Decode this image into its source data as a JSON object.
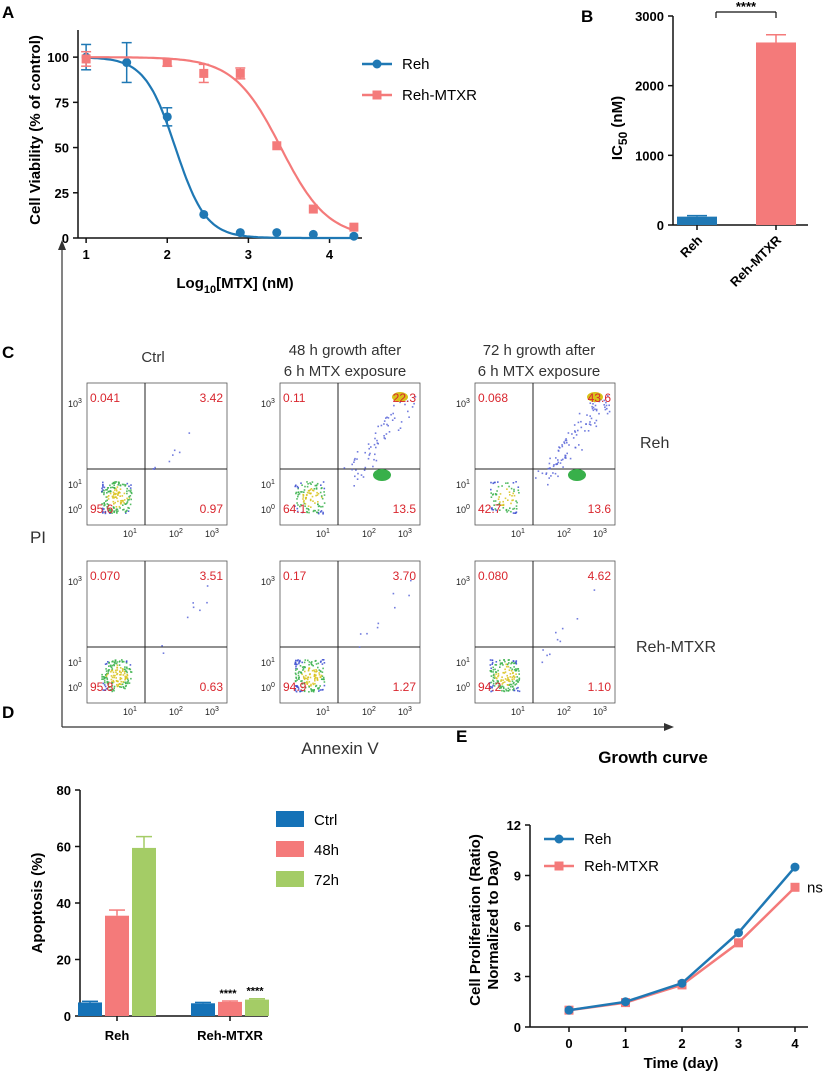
{
  "colors": {
    "reh": "#1f78b4",
    "reh_mtxr": "#f47a7a",
    "ctrl": "#1572b7",
    "h48": "#f47a7a",
    "h72": "#a4cc66",
    "quad_text": "#d9262e"
  },
  "panel_letters": {
    "a": "A",
    "b": "B",
    "c": "C",
    "d": "D",
    "e": "E"
  },
  "chart_data": [
    {
      "id": "A",
      "type": "scatter",
      "xlabel_main": "Log",
      "xlabel_sub": "10",
      "xlabel_rest": "[MTX] (nM)",
      "ylabel": "Cell Viability (% of control)",
      "xlim": [
        0.9,
        4.4
      ],
      "ylim": [
        0,
        115
      ],
      "xticks": [
        "1",
        "2",
        "3",
        "4"
      ],
      "yticks": [
        "0",
        "25",
        "50",
        "75",
        "100"
      ],
      "series": [
        {
          "name": "Reh",
          "x": [
            1,
            1.5,
            2,
            2.45,
            2.9,
            3.35,
            3.8,
            4.3
          ],
          "y": [
            100,
            97,
            67,
            13,
            3,
            3,
            2,
            1
          ],
          "err": [
            7,
            11,
            5,
            1,
            1,
            0.5,
            0.5,
            0.5
          ],
          "ic50_log": 2.1,
          "hill": 2.3
        },
        {
          "name": "Reh-MTXR",
          "x": [
            1,
            2,
            2.45,
            2.9,
            3.35,
            3.8,
            4.3
          ],
          "y": [
            99,
            97,
            91,
            91,
            51,
            16,
            6
          ],
          "err": [
            4,
            2,
            5,
            3,
            1,
            1,
            1
          ],
          "ic50_log": 3.4,
          "hill": 1.5
        }
      ]
    },
    {
      "id": "B",
      "type": "bar",
      "categories": [
        "Reh",
        "Reh-MTXR"
      ],
      "values": [
        120,
        2620
      ],
      "errors": [
        15,
        110
      ],
      "ylabel_main": "IC",
      "ylabel_sub": "50",
      "ylabel_rest": " (nM)",
      "ylim": [
        0,
        3000
      ],
      "yticks": [
        "0",
        "1000",
        "2000",
        "3000"
      ],
      "significance": "****"
    },
    {
      "id": "D",
      "type": "bar",
      "categories": [
        "Reh",
        "Reh-MTXR"
      ],
      "series": [
        {
          "name": "Ctrl",
          "values": [
            4.8,
            4.5
          ],
          "errors": [
            0.4,
            0.3
          ]
        },
        {
          "name": "48h",
          "values": [
            35.5,
            5.0
          ],
          "errors": [
            2.0,
            0.3
          ]
        },
        {
          "name": "72h",
          "values": [
            59.5,
            5.8
          ],
          "errors": [
            4.0,
            0.3
          ]
        }
      ],
      "ylabel": "Apoptosis (%)",
      "ylim": [
        0,
        80
      ],
      "yticks": [
        "0",
        "20",
        "40",
        "60",
        "80"
      ],
      "significance": [
        "****",
        "****"
      ]
    },
    {
      "id": "E",
      "type": "line",
      "title": "Growth curve",
      "xlabel": "Time (day)",
      "ylabel_line1": "Cell Proliferation (Ratio)",
      "ylabel_line2": "Normalized to Day0",
      "x": [
        0,
        1,
        2,
        3,
        4
      ],
      "xticks": [
        "0",
        "1",
        "2",
        "3",
        "4"
      ],
      "yticks": [
        "0",
        "3",
        "6",
        "9",
        "12"
      ],
      "ylim": [
        0,
        12
      ],
      "series": [
        {
          "name": "Reh",
          "values": [
            1.0,
            1.5,
            2.6,
            5.6,
            9.5
          ]
        },
        {
          "name": "Reh-MTXR",
          "values": [
            1.0,
            1.45,
            2.5,
            5.0,
            8.3
          ]
        }
      ],
      "annotation": "ns"
    }
  ],
  "flow": {
    "ylabel": "PI",
    "xlabel": "Annexin V",
    "col_headers": [
      [
        "Ctrl"
      ],
      [
        "48 h growth after",
        "6 h MTX exposure"
      ],
      [
        "72 h growth after",
        "6 h MTX exposure"
      ]
    ],
    "row_labels": [
      "Reh",
      "Reh-MTXR"
    ],
    "tick_labels": [
      "10",
      "0",
      "1",
      "2",
      "3"
    ],
    "quadrants": [
      [
        [
          "0.041",
          "3.42",
          "95.6",
          "0.97"
        ],
        [
          "0.11",
          "22.3",
          "64.1",
          "13.5"
        ],
        [
          "0.068",
          "43.6",
          "42.7",
          "13.6"
        ]
      ],
      [
        [
          "0.070",
          "3.51",
          "95.8",
          "0.63"
        ],
        [
          "0.17",
          "3.70",
          "94.9",
          "1.27"
        ],
        [
          "0.080",
          "4.62",
          "94.2",
          "1.10"
        ]
      ]
    ]
  }
}
